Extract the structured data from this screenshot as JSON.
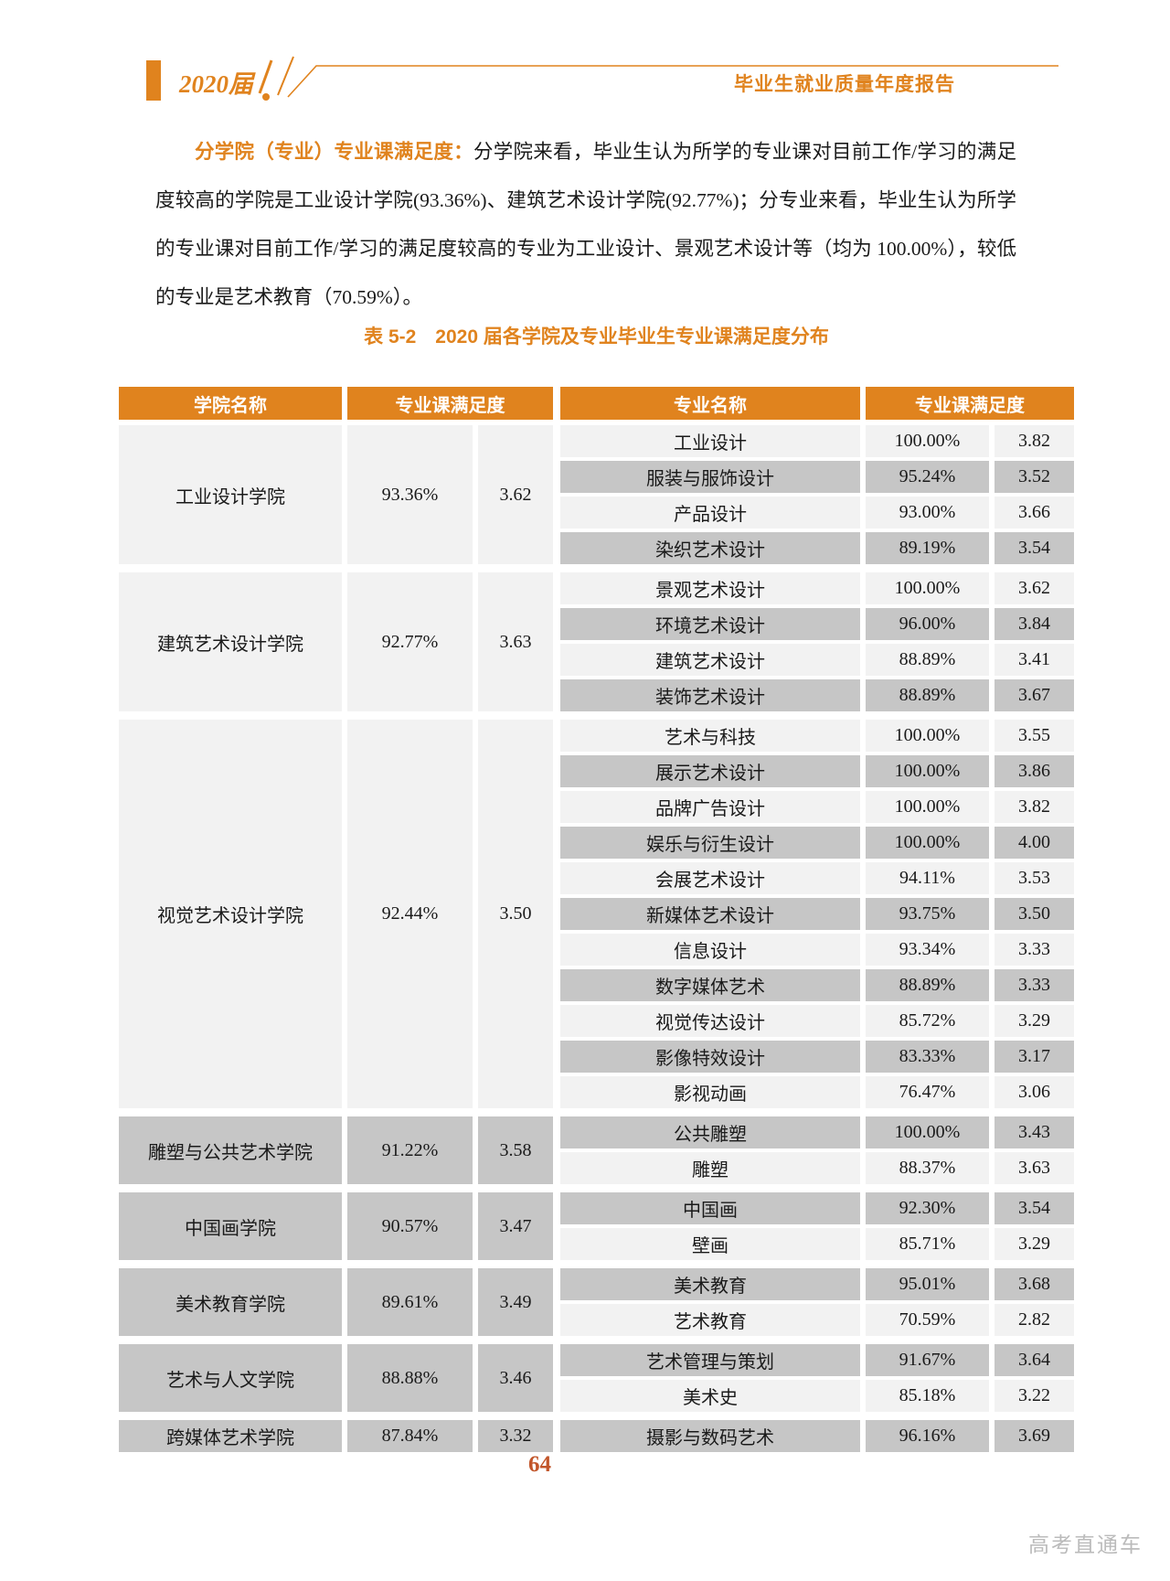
{
  "header": {
    "year_label": "2020届",
    "report_title": "毕业生就业质量年度报告"
  },
  "paragraph": {
    "lead": "分学院（专业）专业课满足度：",
    "body": "分学院来看，毕业生认为所学的专业课对目前工作/学习的满足度较高的学院是工业设计学院(93.36%)、建筑艺术设计学院(92.77%)；分专业来看，毕业生认为所学的专业课对目前工作/学习的满足度较高的专业为工业设计、景观艺术设计等（均为 100.00%），较低的专业是艺术教育（70.59%）。"
  },
  "table": {
    "caption": "表 5-2　2020 届各学院及专业毕业生专业课满足度分布",
    "headers": [
      "学院名称",
      "专业课满足度",
      "专业名称",
      "专业课满足度"
    ],
    "groups": [
      {
        "college": "工业设计学院",
        "pct": "93.36%",
        "score": "3.62",
        "majors": [
          {
            "name": "工业设计",
            "pct": "100.00%",
            "score": "3.82"
          },
          {
            "name": "服装与服饰设计",
            "pct": "95.24%",
            "score": "3.52"
          },
          {
            "name": "产品设计",
            "pct": "93.00%",
            "score": "3.66"
          },
          {
            "name": "染织艺术设计",
            "pct": "89.19%",
            "score": "3.54"
          }
        ]
      },
      {
        "college": "建筑艺术设计学院",
        "pct": "92.77%",
        "score": "3.63",
        "majors": [
          {
            "name": "景观艺术设计",
            "pct": "100.00%",
            "score": "3.62"
          },
          {
            "name": "环境艺术设计",
            "pct": "96.00%",
            "score": "3.84"
          },
          {
            "name": "建筑艺术设计",
            "pct": "88.89%",
            "score": "3.41"
          },
          {
            "name": "装饰艺术设计",
            "pct": "88.89%",
            "score": "3.67"
          }
        ]
      },
      {
        "college": "视觉艺术设计学院",
        "pct": "92.44%",
        "score": "3.50",
        "majors": [
          {
            "name": "艺术与科技",
            "pct": "100.00%",
            "score": "3.55"
          },
          {
            "name": "展示艺术设计",
            "pct": "100.00%",
            "score": "3.86"
          },
          {
            "name": "品牌广告设计",
            "pct": "100.00%",
            "score": "3.82"
          },
          {
            "name": "娱乐与衍生设计",
            "pct": "100.00%",
            "score": "4.00"
          },
          {
            "name": "会展艺术设计",
            "pct": "94.11%",
            "score": "3.53"
          },
          {
            "name": "新媒体艺术设计",
            "pct": "93.75%",
            "score": "3.50"
          },
          {
            "name": "信息设计",
            "pct": "93.34%",
            "score": "3.33"
          },
          {
            "name": "数字媒体艺术",
            "pct": "88.89%",
            "score": "3.33"
          },
          {
            "name": "视觉传达设计",
            "pct": "85.72%",
            "score": "3.29"
          },
          {
            "name": "影像特效设计",
            "pct": "83.33%",
            "score": "3.17"
          },
          {
            "name": "影视动画",
            "pct": "76.47%",
            "score": "3.06"
          }
        ]
      },
      {
        "college": "雕塑与公共艺术学院",
        "pct": "91.22%",
        "score": "3.58",
        "majors": [
          {
            "name": "公共雕塑",
            "pct": "100.00%",
            "score": "3.43"
          },
          {
            "name": "雕塑",
            "pct": "88.37%",
            "score": "3.63"
          }
        ]
      },
      {
        "college": "中国画学院",
        "pct": "90.57%",
        "score": "3.47",
        "majors": [
          {
            "name": "中国画",
            "pct": "92.30%",
            "score": "3.54"
          },
          {
            "name": "壁画",
            "pct": "85.71%",
            "score": "3.29"
          }
        ]
      },
      {
        "college": "美术教育学院",
        "pct": "89.61%",
        "score": "3.49",
        "majors": [
          {
            "name": "美术教育",
            "pct": "95.01%",
            "score": "3.68"
          },
          {
            "name": "艺术教育",
            "pct": "70.59%",
            "score": "2.82"
          }
        ]
      },
      {
        "college": "艺术与人文学院",
        "pct": "88.88%",
        "score": "3.46",
        "majors": [
          {
            "name": "艺术管理与策划",
            "pct": "91.67%",
            "score": "3.64"
          },
          {
            "name": "美术史",
            "pct": "85.18%",
            "score": "3.22"
          }
        ]
      },
      {
        "college": "跨媒体艺术学院",
        "pct": "87.84%",
        "score": "3.32",
        "majors": [
          {
            "name": "摄影与数码艺术",
            "pct": "96.16%",
            "score": "3.69"
          }
        ]
      }
    ]
  },
  "footer": {
    "page_number": "64",
    "watermark": "高考直通车"
  },
  "colors": {
    "accent": "#E0831E",
    "row_light": "#F2F2F2",
    "row_dark": "#C6C6C6",
    "page_number": "#C2562B"
  }
}
